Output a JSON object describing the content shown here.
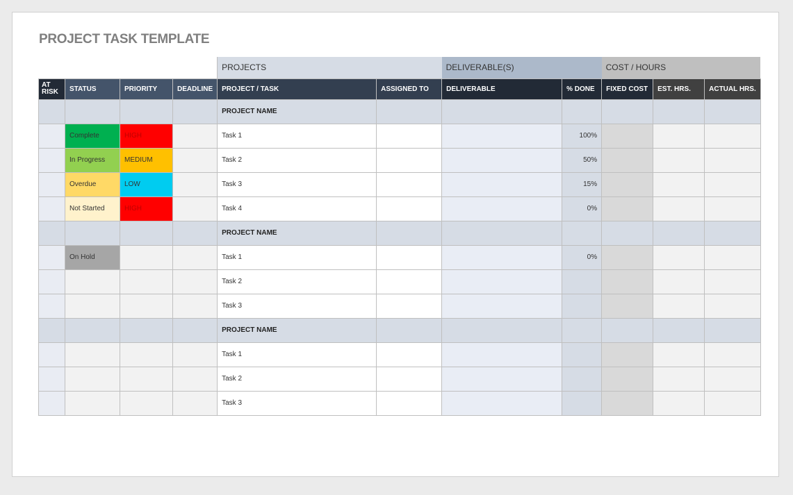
{
  "title": "PROJECT TASK TEMPLATE",
  "groups": {
    "projects": "PROJECTS",
    "deliverables": "DELIVERABLE(S)",
    "cost": "COST / HOURS"
  },
  "headers": [
    "AT RISK",
    "STATUS",
    "PRIORITY",
    "DEADLINE",
    "PROJECT / TASK",
    "ASSIGNED TO",
    "DELIVERABLE",
    "% DONE",
    "FIXED COST",
    "EST. HRS.",
    "ACTUAL HRS."
  ],
  "colors": {
    "complete": "#00b050",
    "in_progress": "#92d050",
    "overdue": "#ffd966",
    "not_started": "#fff2cc",
    "on_hold": "#a6a6a6",
    "high": "#ff0000",
    "medium": "#ffc000",
    "low": "#00ccf0"
  },
  "projects": [
    {
      "name": "PROJECT NAME",
      "tasks": [
        {
          "status": "Complete",
          "status_color": "#00b050",
          "priority": "HIGH",
          "priority_color": "#ff0000",
          "task": "Task 1",
          "done": "100%"
        },
        {
          "status": "In Progress",
          "status_color": "#92d050",
          "priority": "MEDIUM",
          "priority_color": "#ffc000",
          "task": "Task 2",
          "done": "50%"
        },
        {
          "status": "Overdue",
          "status_color": "#ffd966",
          "priority": "LOW",
          "priority_color": "#00ccf0",
          "task": "Task 3",
          "done": "15%"
        },
        {
          "status": "Not Started",
          "status_color": "#fff2cc",
          "priority": "HIGH",
          "priority_color": "#ff0000",
          "task": "Task 4",
          "done": "0%"
        }
      ]
    },
    {
      "name": "PROJECT NAME",
      "tasks": [
        {
          "status": "On Hold",
          "status_color": "#a6a6a6",
          "priority": "",
          "priority_color": "",
          "task": "Task 1",
          "done": "0%"
        },
        {
          "status": "",
          "status_color": "",
          "priority": "",
          "priority_color": "",
          "task": "Task 2",
          "done": ""
        },
        {
          "status": "",
          "status_color": "",
          "priority": "",
          "priority_color": "",
          "task": "Task 3",
          "done": ""
        }
      ]
    },
    {
      "name": "PROJECT NAME",
      "tasks": [
        {
          "status": "",
          "status_color": "",
          "priority": "",
          "priority_color": "",
          "task": "Task 1",
          "done": ""
        },
        {
          "status": "",
          "status_color": "",
          "priority": "",
          "priority_color": "",
          "task": "Task 2",
          "done": ""
        },
        {
          "status": "",
          "status_color": "",
          "priority": "",
          "priority_color": "",
          "task": "Task 3",
          "done": ""
        }
      ]
    }
  ]
}
